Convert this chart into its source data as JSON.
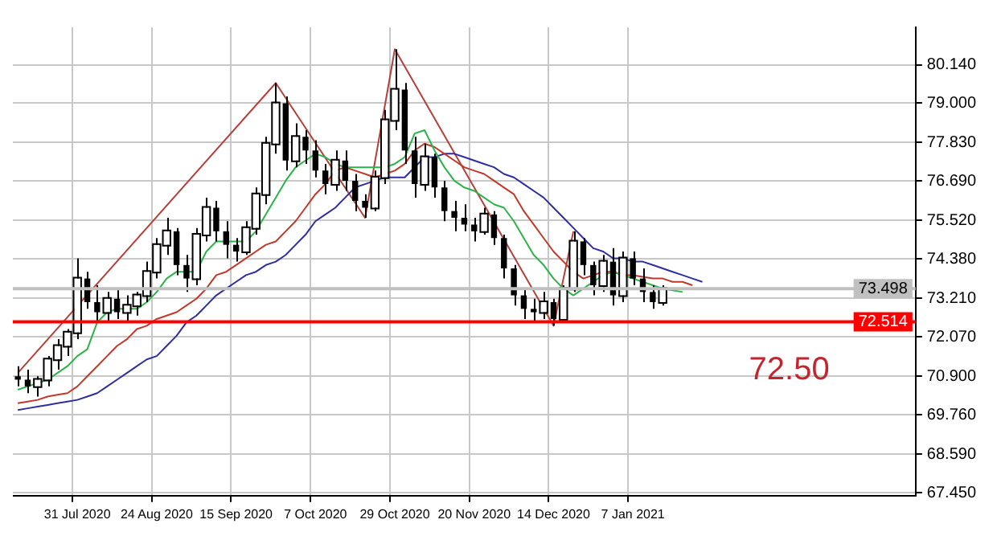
{
  "chart_data": {
    "type": "candlestick",
    "categories": [
      null,
      null,
      null,
      null,
      null,
      null,
      "31 Jul 2020",
      null,
      null,
      null,
      null,
      null,
      null,
      null,
      "24 Aug 2020",
      null,
      null,
      null,
      null,
      null,
      null,
      null,
      "15 Sep 2020",
      null,
      null,
      null,
      null,
      null,
      null,
      null,
      "7 Oct 2020",
      null,
      null,
      null,
      null,
      null,
      null,
      null,
      "29 Oct 2020",
      null,
      null,
      null,
      null,
      null,
      null,
      null,
      "20 Nov 2020",
      null,
      null,
      null,
      null,
      null,
      null,
      null,
      "14 Dec 2020",
      null,
      null,
      null,
      null,
      null,
      null,
      null,
      "7 Jan 2021",
      null,
      null,
      null,
      null,
      null,
      null,
      null,
      null,
      null,
      null,
      null,
      null,
      null,
      null,
      null,
      null,
      null,
      null,
      null,
      null,
      null,
      null,
      null,
      null,
      null,
      null,
      null,
      null
    ],
    "ohlc": [
      [
        70.9,
        71.2,
        70.6,
        70.8
      ],
      [
        70.8,
        71.1,
        70.4,
        70.6
      ],
      [
        70.6,
        70.9,
        70.3,
        70.8
      ],
      [
        70.8,
        71.5,
        70.6,
        71.4
      ],
      [
        71.4,
        72.0,
        71.1,
        71.8
      ],
      [
        71.8,
        72.3,
        71.5,
        72.2
      ],
      [
        72.2,
        74.4,
        72.0,
        73.8
      ],
      [
        73.8,
        74.0,
        72.9,
        73.1
      ],
      [
        73.1,
        73.6,
        72.5,
        72.8
      ],
      [
        72.8,
        73.4,
        72.5,
        73.2
      ],
      [
        73.2,
        73.5,
        72.6,
        72.8
      ],
      [
        72.8,
        73.3,
        72.5,
        73.0
      ],
      [
        73.0,
        73.4,
        72.7,
        73.3
      ],
      [
        73.3,
        74.3,
        73.1,
        74.0
      ],
      [
        74.0,
        75.0,
        73.8,
        74.8
      ],
      [
        74.8,
        75.6,
        74.5,
        75.2
      ],
      [
        75.2,
        75.3,
        73.9,
        74.2
      ],
      [
        74.2,
        74.5,
        73.4,
        73.8
      ],
      [
        73.8,
        75.3,
        73.6,
        75.1
      ],
      [
        75.1,
        76.2,
        74.9,
        75.9
      ],
      [
        75.9,
        76.1,
        74.9,
        75.2
      ],
      [
        75.2,
        75.5,
        74.4,
        74.8
      ],
      [
        74.8,
        75.0,
        74.3,
        74.6
      ],
      [
        74.6,
        75.5,
        74.5,
        75.3
      ],
      [
        75.3,
        76.5,
        75.1,
        76.3
      ],
      [
        76.3,
        78.0,
        76.0,
        77.8
      ],
      [
        77.8,
        79.6,
        77.5,
        79.0
      ],
      [
        79.0,
        79.2,
        77.0,
        77.3
      ],
      [
        77.3,
        78.4,
        77.1,
        78.0
      ],
      [
        78.0,
        78.2,
        77.2,
        77.6
      ],
      [
        77.6,
        77.9,
        76.8,
        77.0
      ],
      [
        77.0,
        77.2,
        76.3,
        76.6
      ],
      [
        76.6,
        77.6,
        76.4,
        77.3
      ],
      [
        77.3,
        77.6,
        76.4,
        76.7
      ],
      [
        76.7,
        76.9,
        75.8,
        76.1
      ],
      [
        76.1,
        76.3,
        75.6,
        75.9
      ],
      [
        75.9,
        77.0,
        75.8,
        76.8
      ],
      [
        76.8,
        78.8,
        76.6,
        78.5
      ],
      [
        78.5,
        80.6,
        78.2,
        79.4
      ],
      [
        79.4,
        79.6,
        77.2,
        77.6
      ],
      [
        77.6,
        78.0,
        76.2,
        76.6
      ],
      [
        76.6,
        77.8,
        76.4,
        77.4
      ],
      [
        77.4,
        77.5,
        76.2,
        76.5
      ],
      [
        76.5,
        76.7,
        75.5,
        75.8
      ],
      [
        75.8,
        76.1,
        75.2,
        75.6
      ],
      [
        75.6,
        76.0,
        75.2,
        75.4
      ],
      [
        75.4,
        75.6,
        74.9,
        75.2
      ],
      [
        75.2,
        75.9,
        75.1,
        75.7
      ],
      [
        75.7,
        75.8,
        74.8,
        75.0
      ],
      [
        75.0,
        75.1,
        73.8,
        74.1
      ],
      [
        74.1,
        74.2,
        73.0,
        73.3
      ],
      [
        73.3,
        73.5,
        72.6,
        72.9
      ],
      [
        72.9,
        73.2,
        72.5,
        72.8
      ],
      [
        72.8,
        73.4,
        72.6,
        73.1
      ],
      [
        73.1,
        73.2,
        72.4,
        72.6
      ],
      [
        72.6,
        73.6,
        72.5,
        73.5
      ],
      [
        73.5,
        75.2,
        73.4,
        74.9
      ],
      [
        74.9,
        75.0,
        73.9,
        74.2
      ],
      [
        74.2,
        74.3,
        73.3,
        73.6
      ],
      [
        73.6,
        74.5,
        73.4,
        74.3
      ],
      [
        74.3,
        74.7,
        73.0,
        73.3
      ],
      [
        73.3,
        74.6,
        73.1,
        74.4
      ],
      [
        74.4,
        74.6,
        73.6,
        73.8
      ],
      [
        73.8,
        74.1,
        73.1,
        73.4
      ],
      [
        73.4,
        73.6,
        72.9,
        73.1
      ],
      [
        73.1,
        73.6,
        73.0,
        73.5
      ],
      null,
      null,
      null,
      null,
      null,
      null,
      null,
      null,
      null,
      null,
      null,
      null,
      null,
      null,
      null,
      null,
      null,
      null,
      null,
      null,
      null,
      null,
      null,
      null,
      null
    ],
    "series": [
      {
        "type": "line",
        "color": "#2bb34a",
        "values": [
          70.5,
          70.6,
          70.7,
          70.8,
          71.0,
          71.2,
          71.5,
          71.7,
          72.5,
          72.8,
          72.9,
          72.9,
          72.9,
          73.1,
          73.4,
          73.8,
          74.0,
          74.0,
          74.0,
          74.6,
          74.9,
          74.9,
          74.9,
          74.9,
          75.2,
          75.7,
          76.2,
          76.7,
          77.1,
          77.3,
          77.5,
          77.4,
          77.2,
          77.1,
          77.1,
          77.1,
          77.1,
          77.1,
          77.2,
          77.4,
          78.1,
          78.2,
          77.6,
          77.1,
          76.7,
          76.5,
          76.4,
          76.2,
          76.0,
          75.9,
          75.5,
          75.0,
          74.5,
          74.2,
          73.8,
          73.5,
          73.3,
          73.5,
          73.7,
          73.9,
          74.0,
          73.9,
          73.8,
          73.7,
          73.6,
          73.5,
          73.45,
          73.4,
          null,
          null,
          null,
          null,
          null,
          null,
          null,
          null,
          null,
          null,
          null,
          null,
          null,
          null,
          null,
          null,
          null,
          null,
          null,
          null,
          null,
          null,
          null
        ]
      },
      {
        "type": "line",
        "color": "#c0392b",
        "values": [
          70.1,
          70.15,
          70.2,
          70.3,
          70.35,
          70.4,
          70.6,
          70.9,
          71.2,
          71.5,
          71.8,
          72.0,
          72.3,
          72.4,
          72.6,
          72.7,
          72.8,
          73.0,
          73.2,
          73.5,
          73.9,
          74.0,
          74.2,
          74.4,
          74.6,
          74.8,
          74.9,
          75.2,
          75.5,
          75.9,
          76.3,
          76.6,
          77.0,
          77.1,
          77.0,
          76.9,
          76.8,
          76.9,
          77.0,
          77.2,
          77.6,
          77.8,
          77.7,
          77.5,
          77.3,
          77.1,
          77.0,
          76.9,
          76.7,
          76.5,
          76.3,
          75.8,
          75.4,
          75.0,
          74.6,
          74.3,
          74.0,
          73.8,
          73.9,
          74.0,
          74.0,
          73.9,
          73.9,
          73.85,
          73.8,
          73.8,
          73.7,
          73.7,
          73.6,
          null,
          null,
          null,
          null,
          null,
          null,
          null,
          null,
          null,
          null,
          null,
          null,
          null,
          null,
          null,
          null,
          null,
          null,
          null,
          null,
          null,
          null
        ]
      },
      {
        "type": "line",
        "color": "#2e2e9e",
        "values": [
          69.9,
          69.95,
          70.0,
          70.05,
          70.1,
          70.15,
          70.2,
          70.3,
          70.4,
          70.6,
          70.8,
          71.0,
          71.2,
          71.4,
          71.5,
          71.8,
          72.1,
          72.5,
          72.7,
          73.0,
          73.3,
          73.5,
          73.7,
          73.9,
          74.0,
          74.2,
          74.3,
          74.5,
          74.8,
          75.1,
          75.5,
          75.7,
          75.9,
          76.2,
          76.5,
          76.6,
          76.7,
          76.8,
          76.8,
          76.8,
          77.1,
          77.4,
          77.4,
          77.5,
          77.5,
          77.4,
          77.3,
          77.2,
          77.1,
          76.9,
          76.8,
          76.6,
          76.4,
          76.2,
          75.9,
          75.6,
          75.3,
          75.0,
          74.7,
          74.6,
          74.4,
          74.4,
          74.3,
          74.3,
          74.2,
          74.1,
          74.0,
          73.9,
          73.8,
          73.7,
          null,
          null,
          null,
          null,
          null,
          null,
          null,
          null,
          null,
          null,
          null,
          null,
          null,
          null,
          null,
          null,
          null,
          null,
          null,
          null,
          null
        ]
      },
      {
        "type": "line",
        "color": "#b5403a",
        "values": [
          71.0,
          null,
          null,
          null,
          null,
          null,
          null,
          null,
          null,
          null,
          null,
          null,
          null,
          null,
          null,
          null,
          null,
          null,
          null,
          null,
          null,
          null,
          null,
          null,
          null,
          null,
          79.6,
          null,
          null,
          null,
          null,
          null,
          null,
          null,
          null,
          75.6,
          null,
          null,
          80.6,
          null,
          null,
          null,
          null,
          null,
          null,
          null,
          null,
          null,
          null,
          null,
          null,
          null,
          null,
          null,
          72.4,
          null,
          75.2,
          null,
          null,
          null,
          null,
          null,
          null,
          null,
          null,
          null,
          null,
          null,
          null,
          null,
          null,
          null,
          null,
          null,
          null,
          null,
          null,
          null,
          null,
          null,
          null,
          null,
          null,
          null,
          null,
          null,
          null,
          null,
          null,
          null,
          null
        ]
      }
    ],
    "ylim": [
      67.36,
      81.25
    ],
    "yticks": [
      {
        "value": 67.45,
        "label": "67.450"
      },
      {
        "value": 68.59,
        "label": "68.590"
      },
      {
        "value": 69.76,
        "label": "69.760"
      },
      {
        "value": 70.9,
        "label": "70.900"
      },
      {
        "value": 72.07,
        "label": "72.070"
      },
      {
        "value": 73.21,
        "label": "73.210"
      },
      {
        "value": 74.38,
        "label": "74.380"
      },
      {
        "value": 75.52,
        "label": "75.520"
      },
      {
        "value": 76.69,
        "label": "76.690"
      },
      {
        "value": 77.83,
        "label": "77.830"
      },
      {
        "value": 79.0,
        "label": "79.000"
      },
      {
        "value": 80.14,
        "label": "80.140"
      }
    ],
    "ref_lines": [
      {
        "axis": "y",
        "value": 73.498,
        "label": "73.498",
        "color": "#c0c0c0"
      },
      {
        "axis": "y",
        "value": 72.514,
        "label": "72.514",
        "color": "#ff0000"
      }
    ],
    "annotations": [
      "72.50"
    ],
    "grid": true,
    "legend": false,
    "marker": "none"
  }
}
